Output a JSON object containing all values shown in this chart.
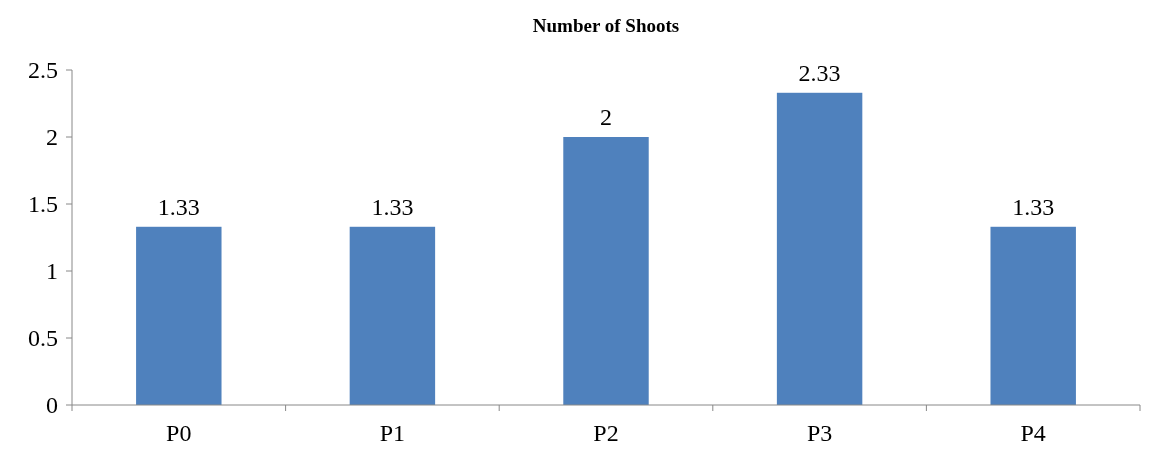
{
  "chart_data": {
    "type": "bar",
    "title": "Number of Shoots",
    "categories": [
      "P0",
      "P1",
      "P2",
      "P3",
      "P4"
    ],
    "values": [
      1.33,
      1.33,
      2,
      2.33,
      1.33
    ],
    "color": "#4f81bd",
    "ylim": [
      0,
      2.5
    ],
    "yticks": [
      0,
      0.5,
      1,
      1.5,
      2,
      2.5
    ],
    "data_labels": true,
    "grid": false
  }
}
